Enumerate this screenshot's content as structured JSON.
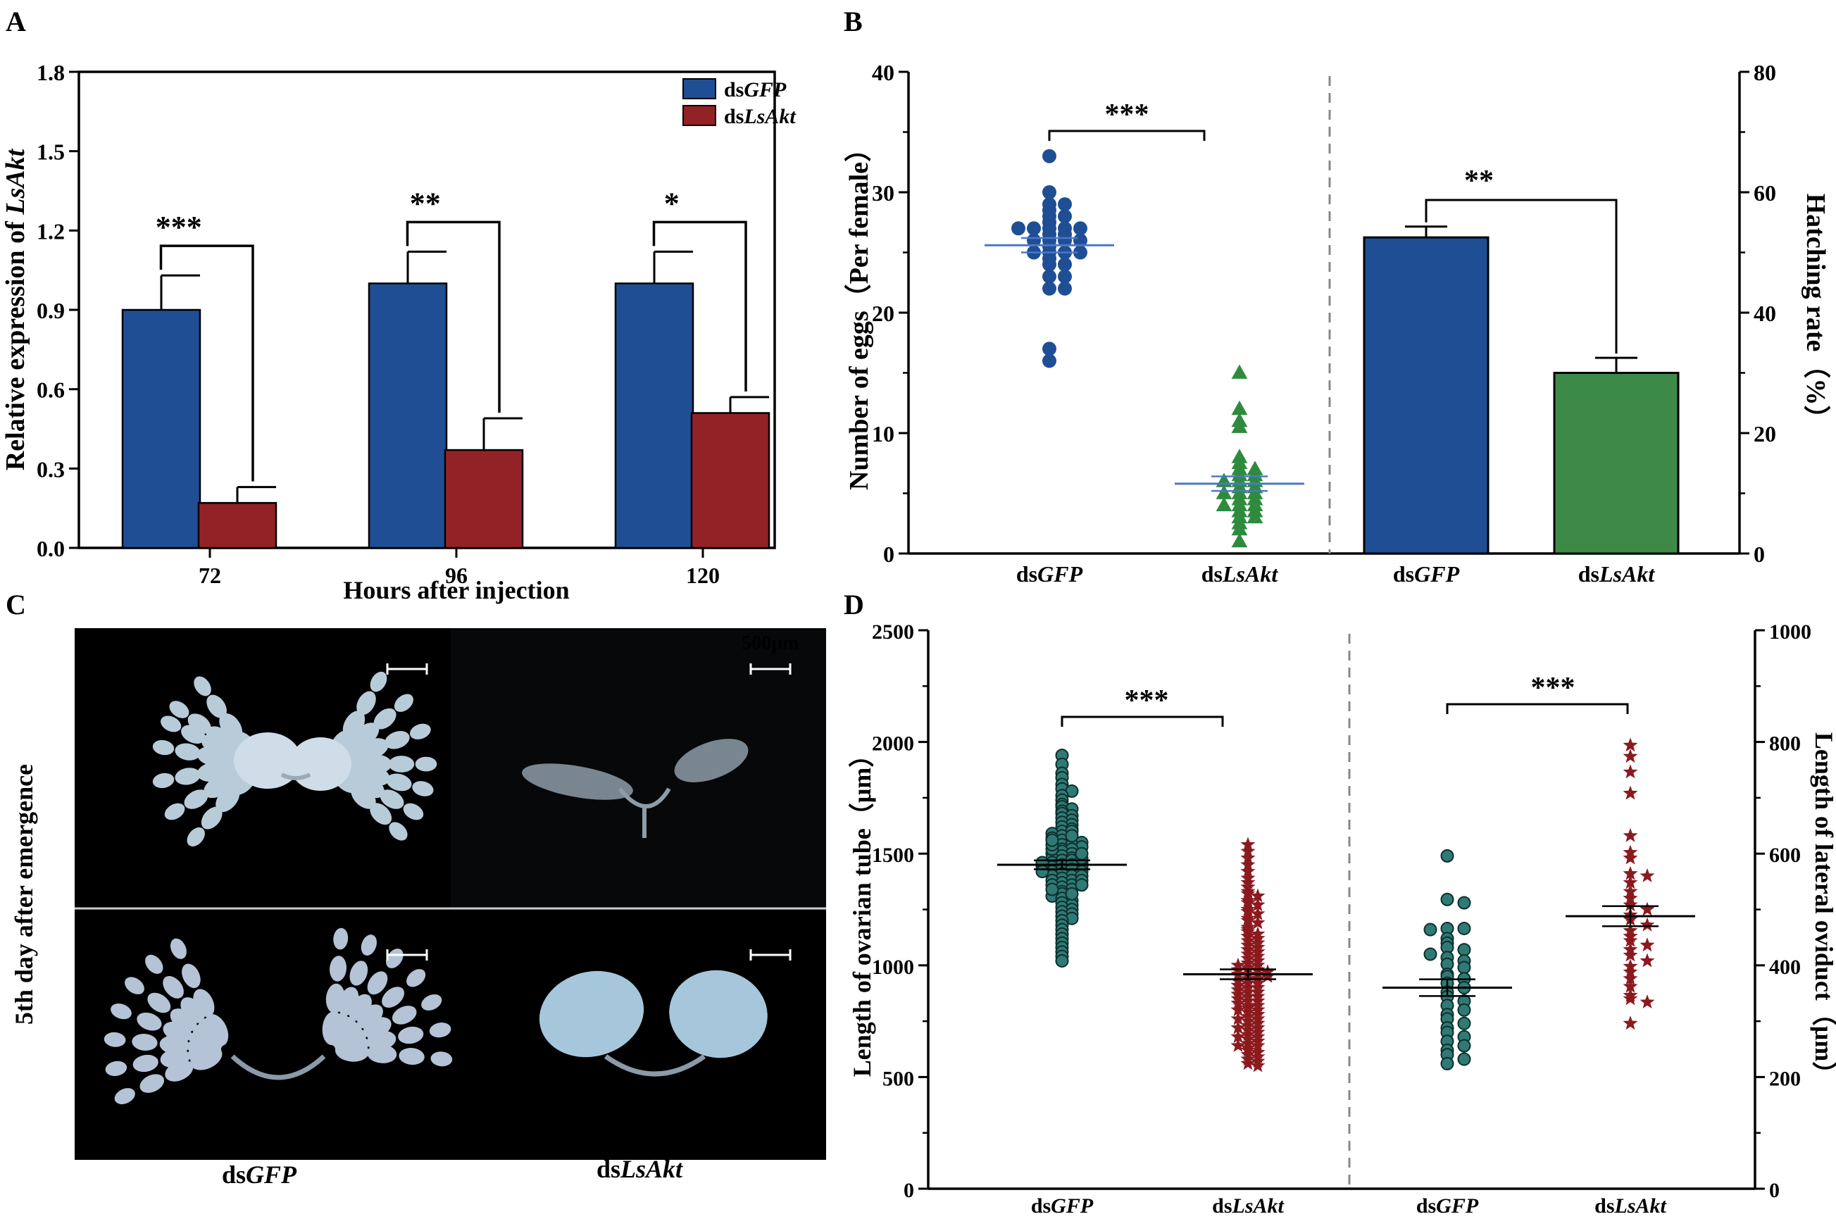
{
  "figure": {
    "panel_labels": {
      "a": "A",
      "b": "B",
      "c": "C",
      "d": "D"
    }
  },
  "chart_data": [
    {
      "panel": "A",
      "type": "bar",
      "ylabel_pre": "Relative expression of ",
      "ylabel_gene": "LsAkt",
      "xlabel": "Hours after injection",
      "ylim": [
        0,
        1.8
      ],
      "yticks": [
        "0.0",
        "0.3",
        "0.6",
        "0.9",
        "1.2",
        "1.5",
        "1.8"
      ],
      "categories": [
        "72",
        "96",
        "120"
      ],
      "legend": [
        {
          "pre": "ds",
          "ital": "GFP",
          "color": "#1f4e94"
        },
        {
          "pre": "ds",
          "ital": "LsAkt",
          "color": "#932226"
        }
      ],
      "series": [
        {
          "name": "dsGFP",
          "color": "#1f4e94",
          "values": [
            0.9,
            1.0,
            1.0
          ],
          "errors": [
            0.13,
            0.12,
            0.12
          ]
        },
        {
          "name": "dsLsAkt",
          "color": "#932226",
          "values": [
            0.17,
            0.37,
            0.51
          ],
          "errors": [
            0.06,
            0.12,
            0.06
          ]
        }
      ],
      "significance": [
        "***",
        "**",
        "*"
      ]
    },
    {
      "panel": "B",
      "type": "scatter+bar",
      "ylabel_left": "Number of eggs（Per female）",
      "ylabel_right": "Hatching rate（%）",
      "ylim_left": [
        0,
        40
      ],
      "ylim_right": [
        0,
        80
      ],
      "yticks_left": [
        "0",
        "10",
        "20",
        "30",
        "40"
      ],
      "yticks_right": [
        "0",
        "20",
        "40",
        "60",
        "80"
      ],
      "categories": [
        {
          "pre": "ds",
          "ital": "GFP"
        },
        {
          "pre": "ds",
          "ital": "LsAkt"
        },
        {
          "pre": "ds",
          "ital": "GFP"
        },
        {
          "pre": "ds",
          "ital": "LsAkt"
        }
      ],
      "scatter": [
        {
          "name": "dsGFP",
          "marker": "circle",
          "color": "#1f4e94",
          "mean": 25.6,
          "sem": 0.6,
          "values": [
            33,
            30,
            29,
            29,
            28.5,
            28,
            28,
            27.5,
            27,
            27,
            27,
            27,
            27,
            26.5,
            26.5,
            26,
            26,
            26,
            26,
            25.5,
            25,
            25,
            25,
            25,
            24.5,
            24,
            24,
            23,
            23,
            22,
            22,
            17,
            16
          ]
        },
        {
          "name": "dsLsAkt",
          "marker": "triangle",
          "color": "#2e8b3e",
          "mean": 5.8,
          "sem": 0.6,
          "values": [
            15,
            12,
            11,
            10.5,
            8,
            7.5,
            7,
            7,
            6.5,
            6.5,
            6,
            6,
            6,
            5.5,
            5.5,
            5,
            5,
            5,
            4.5,
            4.5,
            4,
            4,
            4,
            3.5,
            3.5,
            3,
            3,
            2.5,
            2,
            1
          ]
        }
      ],
      "bars": [
        {
          "name": "dsGFP",
          "color": "#1f4e94",
          "value": 52.5,
          "error": 1.8
        },
        {
          "name": "dsLsAkt",
          "color": "#3d8a48",
          "value": 30,
          "error": 2.5
        }
      ],
      "significance": [
        "***",
        "**"
      ]
    },
    {
      "panel": "C",
      "type": "micrograph",
      "ylabel": "5th day after emergence",
      "scale_bar": "500μm",
      "columns": [
        {
          "pre": "ds",
          "ital": "GFP"
        },
        {
          "pre": "ds",
          "ital": "LsAkt"
        }
      ]
    },
    {
      "panel": "D",
      "type": "scatter",
      "ylabel_left": "Length of ovarian tube（μm）",
      "ylabel_right": "Length of lateral oviduct（μm）",
      "ylim_left": [
        0,
        2500
      ],
      "ylim_right": [
        0,
        1000
      ],
      "yticks_left": [
        "0",
        "500",
        "1000",
        "1500",
        "2000",
        "2500"
      ],
      "yticks_right": [
        "0",
        "200",
        "400",
        "600",
        "800",
        "1000"
      ],
      "categories": [
        {
          "pre": "ds",
          "ital": "GFP"
        },
        {
          "pre": "ds",
          "ital": "LsAkt"
        },
        {
          "pre": "ds",
          "ital": "GFP"
        },
        {
          "pre": "ds",
          "ital": "LsAkt"
        }
      ],
      "series": [
        {
          "name": "dsGFP ovarian tube",
          "axis": "left",
          "marker": "circle",
          "color": "#2f7a74",
          "mean": 1450,
          "sem": 20,
          "values": [
            1940,
            1900,
            1860,
            1840,
            1810,
            1790,
            1780,
            1760,
            1740,
            1720,
            1710,
            1700,
            1690,
            1680,
            1670,
            1660,
            1650,
            1640,
            1630,
            1620,
            1610,
            1600,
            1600,
            1590,
            1580,
            1570,
            1560,
            1560,
            1550,
            1540,
            1540,
            1530,
            1520,
            1520,
            1510,
            1500,
            1500,
            1490,
            1480,
            1480,
            1470,
            1470,
            1460,
            1460,
            1450,
            1450,
            1440,
            1440,
            1430,
            1430,
            1420,
            1420,
            1410,
            1400,
            1400,
            1390,
            1380,
            1380,
            1370,
            1360,
            1360,
            1350,
            1340,
            1330,
            1320,
            1310,
            1300,
            1290,
            1280,
            1270,
            1260,
            1250,
            1240,
            1230,
            1220,
            1210,
            1200,
            1180,
            1160,
            1140,
            1120,
            1100,
            1080,
            1060,
            1040,
            1020,
            1440,
            1460,
            1480,
            1500,
            1420,
            1400,
            1520,
            1380,
            1540,
            1360,
            1560,
            1340,
            1580,
            1320
          ]
        },
        {
          "name": "dsLsAkt ovarian tube",
          "axis": "left",
          "marker": "star",
          "color": "#8b1a1f",
          "mean": 960,
          "sem": 22,
          "values": [
            1540,
            1510,
            1480,
            1450,
            1420,
            1390,
            1370,
            1350,
            1330,
            1310,
            1290,
            1270,
            1250,
            1230,
            1210,
            1190,
            1170,
            1150,
            1130,
            1110,
            1090,
            1070,
            1050,
            1040,
            1030,
            1020,
            1010,
            1000,
            990,
            980,
            970,
            960,
            950,
            940,
            930,
            920,
            910,
            900,
            890,
            880,
            870,
            860,
            850,
            840,
            830,
            820,
            810,
            800,
            790,
            780,
            770,
            760,
            750,
            740,
            730,
            720,
            710,
            700,
            690,
            680,
            670,
            660,
            650,
            640,
            630,
            620,
            610,
            600,
            590,
            580,
            570,
            560,
            550,
            1000,
            980,
            960,
            940,
            920,
            900,
            1060,
            1080,
            1100,
            1120,
            1140,
            1160,
            880,
            860,
            840,
            820,
            800,
            1200,
            1240,
            1280,
            1320,
            760,
            720,
            680,
            640,
            960,
            980
          ]
        },
        {
          "name": "dsGFP lateral oviduct",
          "axis": "right",
          "marker": "circle",
          "color": "#2f7a74",
          "mean": 360,
          "sem": 15,
          "values": [
            596,
            518,
            512,
            466,
            466,
            464,
            448,
            440,
            432,
            428,
            420,
            414,
            408,
            402,
            396,
            384,
            380,
            376,
            368,
            360,
            352,
            344,
            336,
            328,
            320,
            312,
            304,
            296,
            288,
            280,
            272,
            264,
            256,
            248,
            240,
            232,
            224
          ]
        },
        {
          "name": "dsLsAkt lateral oviduct",
          "axis": "right",
          "marker": "star",
          "color": "#8b1a1f",
          "mean": 488,
          "sem": 18,
          "values": [
            794,
            774,
            746,
            708,
            632,
            602,
            592,
            564,
            560,
            548,
            532,
            520,
            508,
            500,
            490,
            482,
            472,
            462,
            452,
            444,
            436,
            428,
            418,
            408,
            398,
            388,
            376,
            362,
            346,
            340,
            334,
            296
          ]
        }
      ],
      "significance": [
        "***",
        "***"
      ]
    }
  ]
}
